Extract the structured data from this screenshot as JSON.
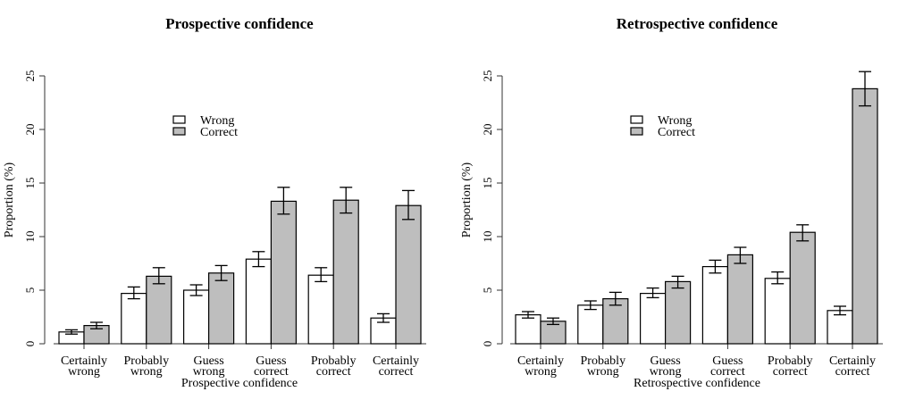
{
  "chart_data": [
    {
      "type": "bar",
      "title": "Prospective confidence",
      "xlabel": "Prospective confidence",
      "ylabel": "Proportion (%)",
      "ylim": [
        0,
        25
      ],
      "yticks": [
        "0",
        "5",
        "10",
        "15",
        "20",
        "25"
      ],
      "categories": [
        [
          "Certainly",
          "wrong"
        ],
        [
          "Probably",
          "wrong"
        ],
        [
          "Guess",
          "wrong"
        ],
        [
          "Guess",
          "correct"
        ],
        [
          "Probably",
          "correct"
        ],
        [
          "Certainly",
          "correct"
        ]
      ],
      "legend": {
        "position": "top-center",
        "entries": [
          "Wrong",
          "Correct"
        ]
      },
      "series": [
        {
          "name": "Wrong",
          "color": "#ffffff",
          "values": [
            1.1,
            4.7,
            5.0,
            7.9,
            6.4,
            2.4
          ],
          "err_low": [
            0.9,
            4.2,
            4.5,
            7.2,
            5.8,
            2.0
          ],
          "err_high": [
            1.3,
            5.3,
            5.5,
            8.6,
            7.1,
            2.8
          ]
        },
        {
          "name": "Correct",
          "color": "#bebebe",
          "values": [
            1.7,
            6.3,
            6.6,
            13.3,
            13.4,
            12.9
          ],
          "err_low": [
            1.4,
            5.6,
            5.9,
            12.1,
            12.2,
            11.6
          ],
          "err_high": [
            2.0,
            7.1,
            7.3,
            14.6,
            14.6,
            14.3
          ]
        }
      ]
    },
    {
      "type": "bar",
      "title": "Retrospective confidence",
      "xlabel": "Retrospective confidence",
      "ylabel": "Proportion (%)",
      "ylim": [
        0,
        25
      ],
      "yticks": [
        "0",
        "5",
        "10",
        "15",
        "20",
        "25"
      ],
      "categories": [
        [
          "Certainly",
          "wrong"
        ],
        [
          "Probably",
          "wrong"
        ],
        [
          "Guess",
          "wrong"
        ],
        [
          "Guess",
          "correct"
        ],
        [
          "Probably",
          "correct"
        ],
        [
          "Certainly",
          "correct"
        ]
      ],
      "legend": {
        "position": "top-center",
        "entries": [
          "Wrong",
          "Correct"
        ]
      },
      "series": [
        {
          "name": "Wrong",
          "color": "#ffffff",
          "values": [
            2.7,
            3.6,
            4.7,
            7.2,
            6.1,
            3.1
          ],
          "err_low": [
            2.4,
            3.2,
            4.3,
            6.6,
            5.6,
            2.7
          ],
          "err_high": [
            3.0,
            4.0,
            5.2,
            7.8,
            6.7,
            3.5
          ]
        },
        {
          "name": "Correct",
          "color": "#bebebe",
          "values": [
            2.1,
            4.2,
            5.8,
            8.3,
            10.4,
            23.8
          ],
          "err_low": [
            1.8,
            3.6,
            5.2,
            7.5,
            9.6,
            22.2
          ],
          "err_high": [
            2.4,
            4.8,
            6.3,
            9.0,
            11.1,
            25.4
          ]
        }
      ]
    }
  ]
}
